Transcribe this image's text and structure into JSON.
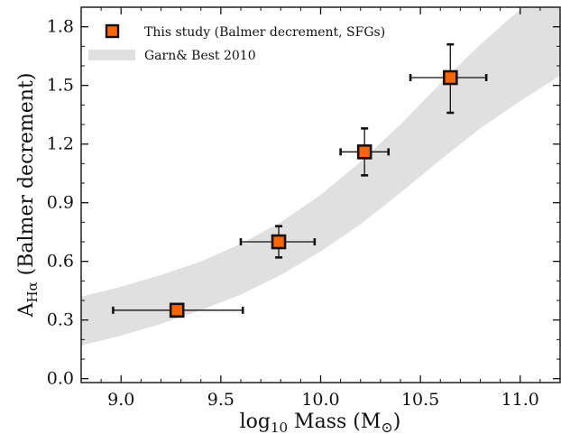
{
  "chart_data": {
    "type": "scatter",
    "xlabel": {
      "main": "log",
      "sub": "10",
      "rest": " Mass (M",
      "sub2": "⊙",
      "close": ")"
    },
    "ylabel": {
      "main": "A",
      "sub": "Hα",
      "rest": " (Balmer decrement)"
    },
    "xlim": [
      8.8,
      11.2
    ],
    "ylim": [
      -0.02,
      1.9
    ],
    "xticks": [
      "9.0",
      "9.5",
      "10.0",
      "10.5",
      "11.0"
    ],
    "yticks": [
      "0.0",
      "0.3",
      "0.6",
      "0.9",
      "1.2",
      "1.5",
      "1.8"
    ],
    "grid": false,
    "legend_position": "top-left",
    "series": [
      {
        "name": "This study (Balmer decrement, SFGs)",
        "marker": "square",
        "color": "#ff6600",
        "edgecolor": "#111111",
        "points": [
          {
            "x": 9.28,
            "y": 0.35,
            "x_err_low": 0.32,
            "x_err_high": 0.33,
            "y_err_low": 0.0,
            "y_err_high": 0.0
          },
          {
            "x": 9.79,
            "y": 0.7,
            "x_err_low": 0.19,
            "x_err_high": 0.18,
            "y_err_low": 0.08,
            "y_err_high": 0.08
          },
          {
            "x": 10.22,
            "y": 1.16,
            "x_err_low": 0.12,
            "x_err_high": 0.12,
            "y_err_low": 0.12,
            "y_err_high": 0.12
          },
          {
            "x": 10.65,
            "y": 1.54,
            "x_err_low": 0.2,
            "x_err_high": 0.18,
            "y_err_low": 0.18,
            "y_err_high": 0.17
          }
        ]
      },
      {
        "name": "Garn& Best 2010",
        "kind": "band",
        "color": "#e0e0e0",
        "band": [
          {
            "x": 8.8,
            "low": 0.17,
            "high": 0.42
          },
          {
            "x": 9.0,
            "low": 0.22,
            "high": 0.47
          },
          {
            "x": 9.2,
            "low": 0.28,
            "high": 0.53
          },
          {
            "x": 9.4,
            "low": 0.35,
            "high": 0.6
          },
          {
            "x": 9.6,
            "low": 0.43,
            "high": 0.69
          },
          {
            "x": 9.8,
            "low": 0.53,
            "high": 0.8
          },
          {
            "x": 10.0,
            "low": 0.65,
            "high": 0.94
          },
          {
            "x": 10.2,
            "low": 0.79,
            "high": 1.11
          },
          {
            "x": 10.4,
            "low": 0.95,
            "high": 1.3
          },
          {
            "x": 10.6,
            "low": 1.12,
            "high": 1.51
          },
          {
            "x": 10.8,
            "low": 1.28,
            "high": 1.71
          },
          {
            "x": 11.0,
            "low": 1.42,
            "high": 1.89
          },
          {
            "x": 11.2,
            "low": 1.55,
            "high": 2.05
          }
        ]
      }
    ]
  }
}
